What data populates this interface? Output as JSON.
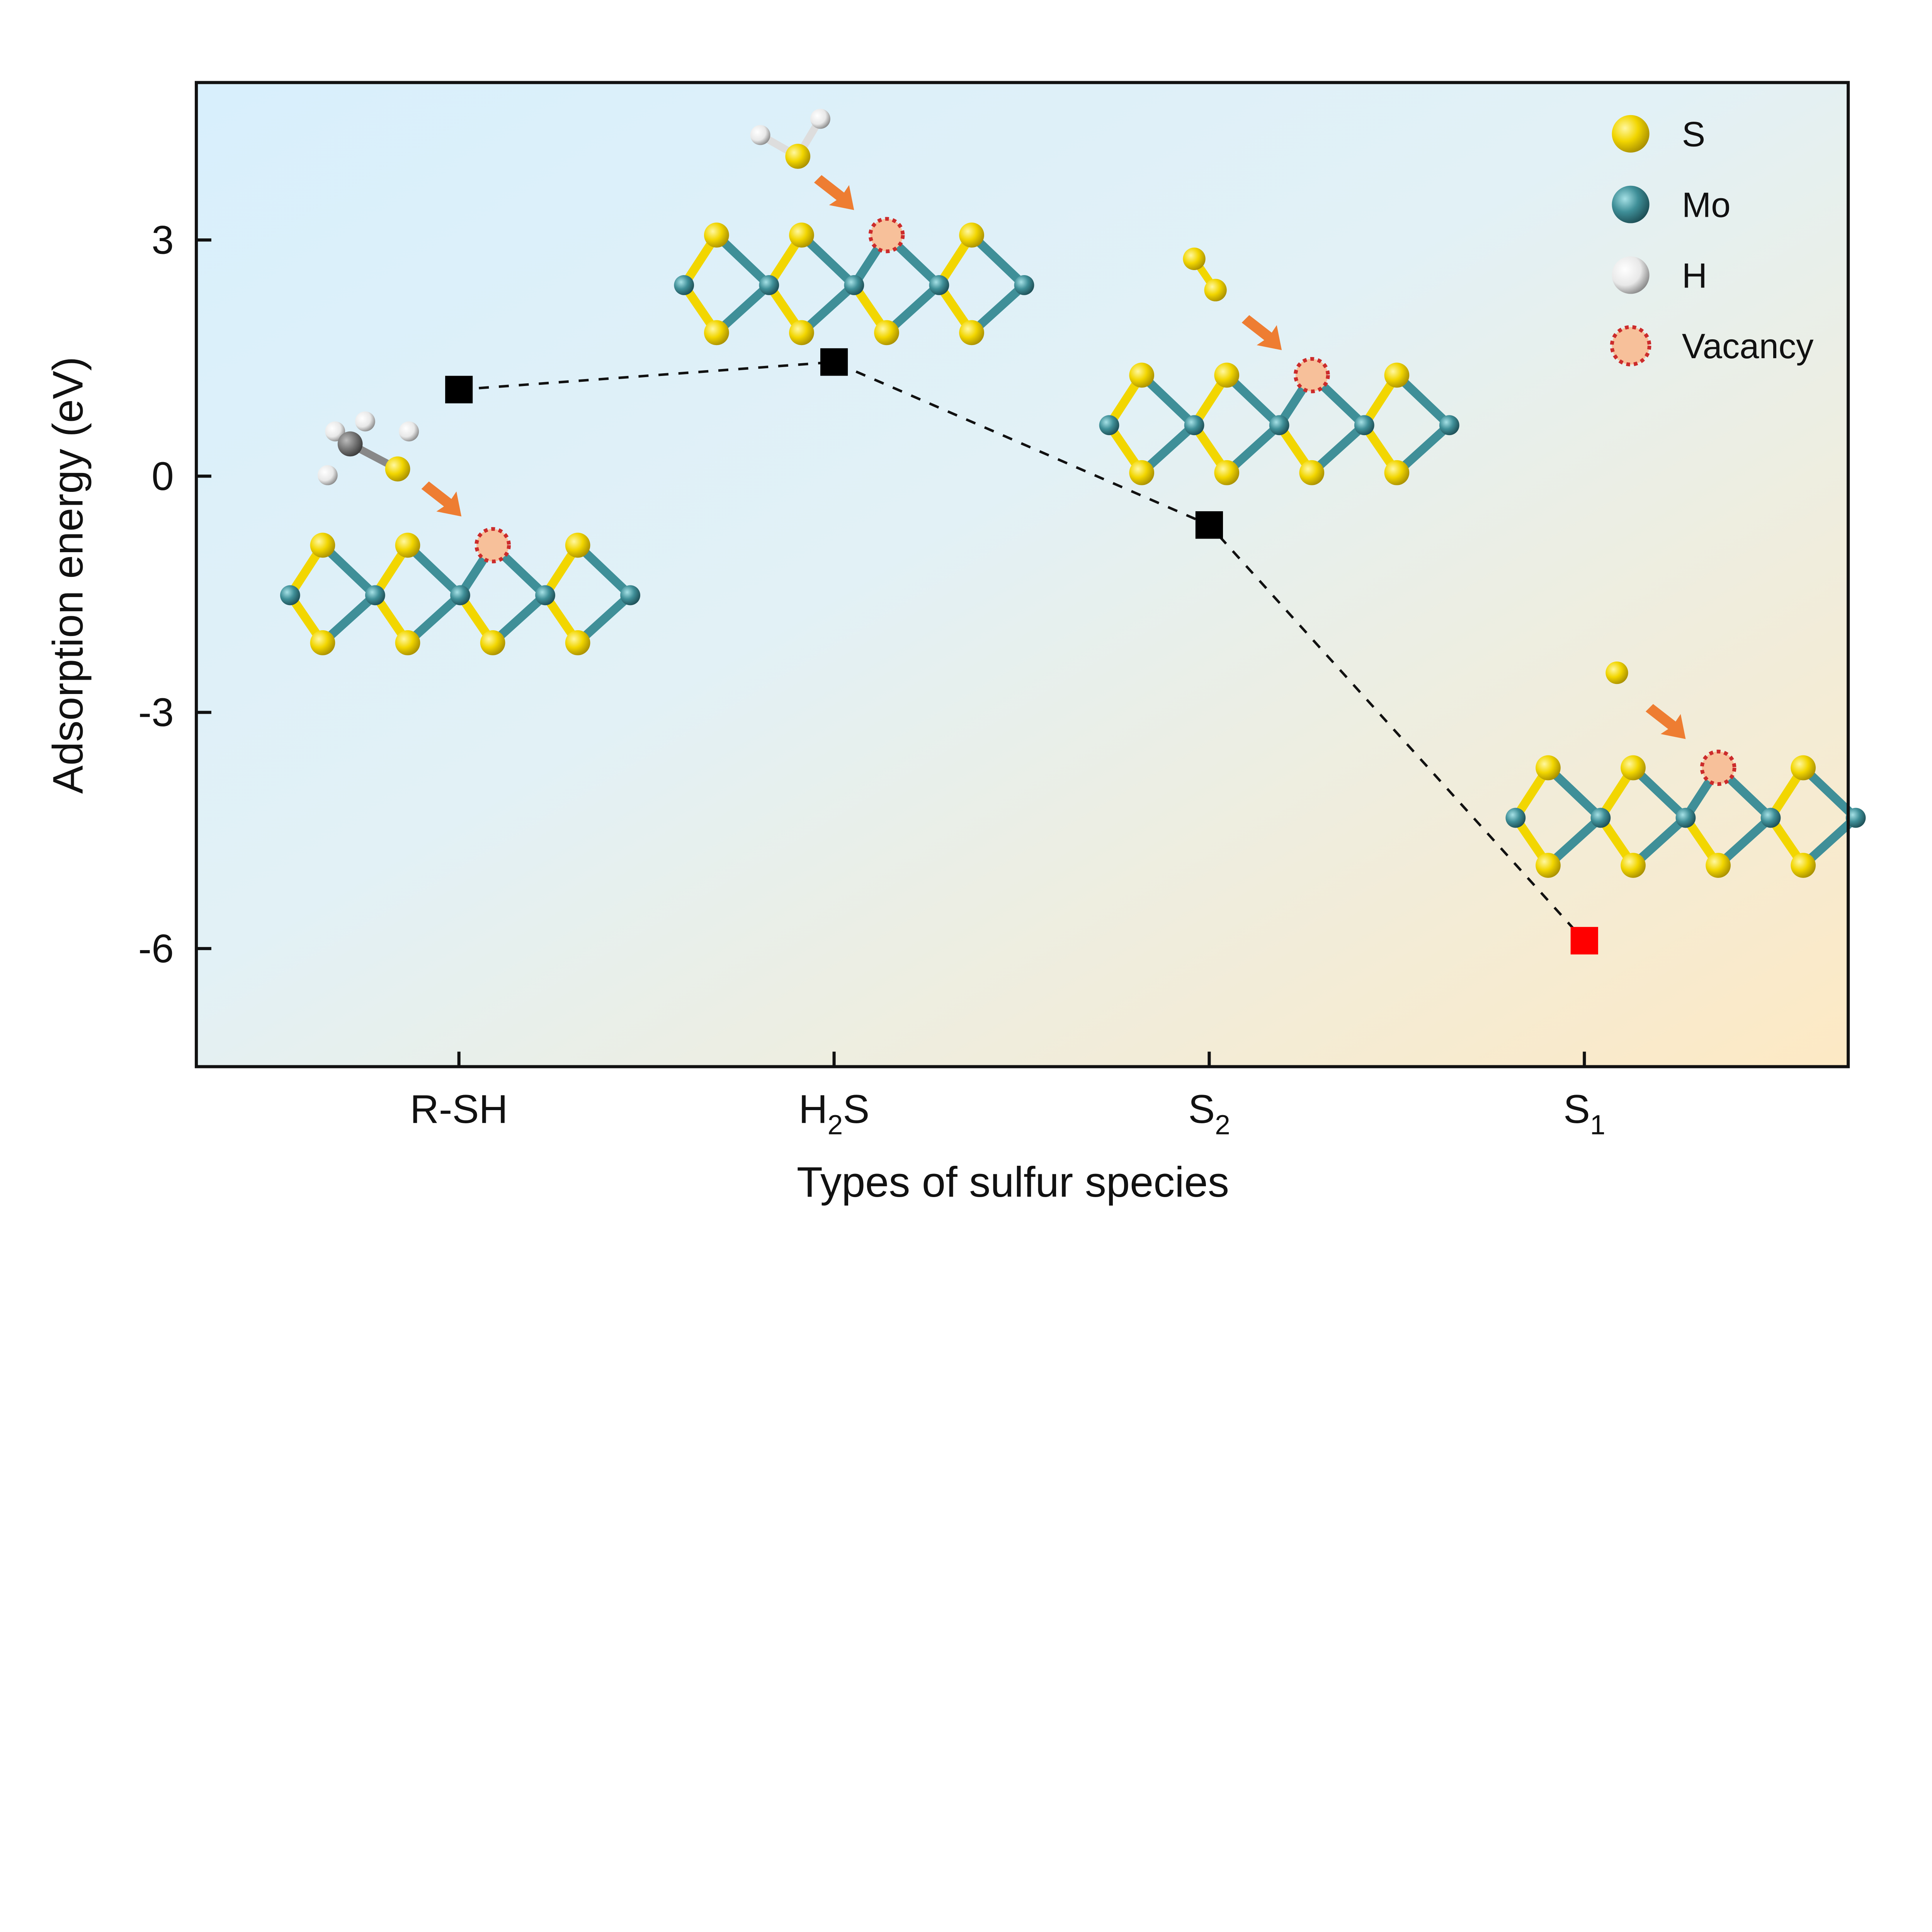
{
  "chart_data": {
    "type": "scatter",
    "title": "",
    "xlabel": "Types of sulfur species",
    "ylabel": "Adsorption energy (eV)",
    "categories": [
      {
        "base": "R-SH",
        "sub": ""
      },
      {
        "base": "H",
        "sub": "2",
        "tail": "S"
      },
      {
        "base": "S",
        "sub": "2"
      },
      {
        "base": "S",
        "sub": "1"
      }
    ],
    "values": [
      1.1,
      1.45,
      -0.62,
      -5.9
    ],
    "marker_colors": [
      "#000000",
      "#000000",
      "#000000",
      "#ff0000"
    ],
    "connector": "dashed",
    "ylim": [
      -7.5,
      5.0
    ],
    "yticks": [
      3,
      0,
      -3,
      -6
    ],
    "ytick_labels": [
      "3",
      "0",
      "-3",
      "-6"
    ],
    "grid": false,
    "legend": {
      "placement": "top-right",
      "entries": [
        {
          "label": "S",
          "color": "#f2d600"
        },
        {
          "label": "Mo",
          "color": "#3f8f98"
        },
        {
          "label": "H",
          "color": "#f2f2f2"
        },
        {
          "label": "Vacancy",
          "color": "#f7c09a"
        }
      ]
    },
    "background_gradient": [
      "#d9effc",
      "#fdebc7"
    ],
    "colors": {
      "sulfur": "#f2d600",
      "molybdenum": "#3f8f98",
      "hydrogen": "#f2f2f2",
      "carbon": "#666666",
      "arrow": "#ee7d32",
      "vacancy_border": "#cc2b2b"
    }
  }
}
